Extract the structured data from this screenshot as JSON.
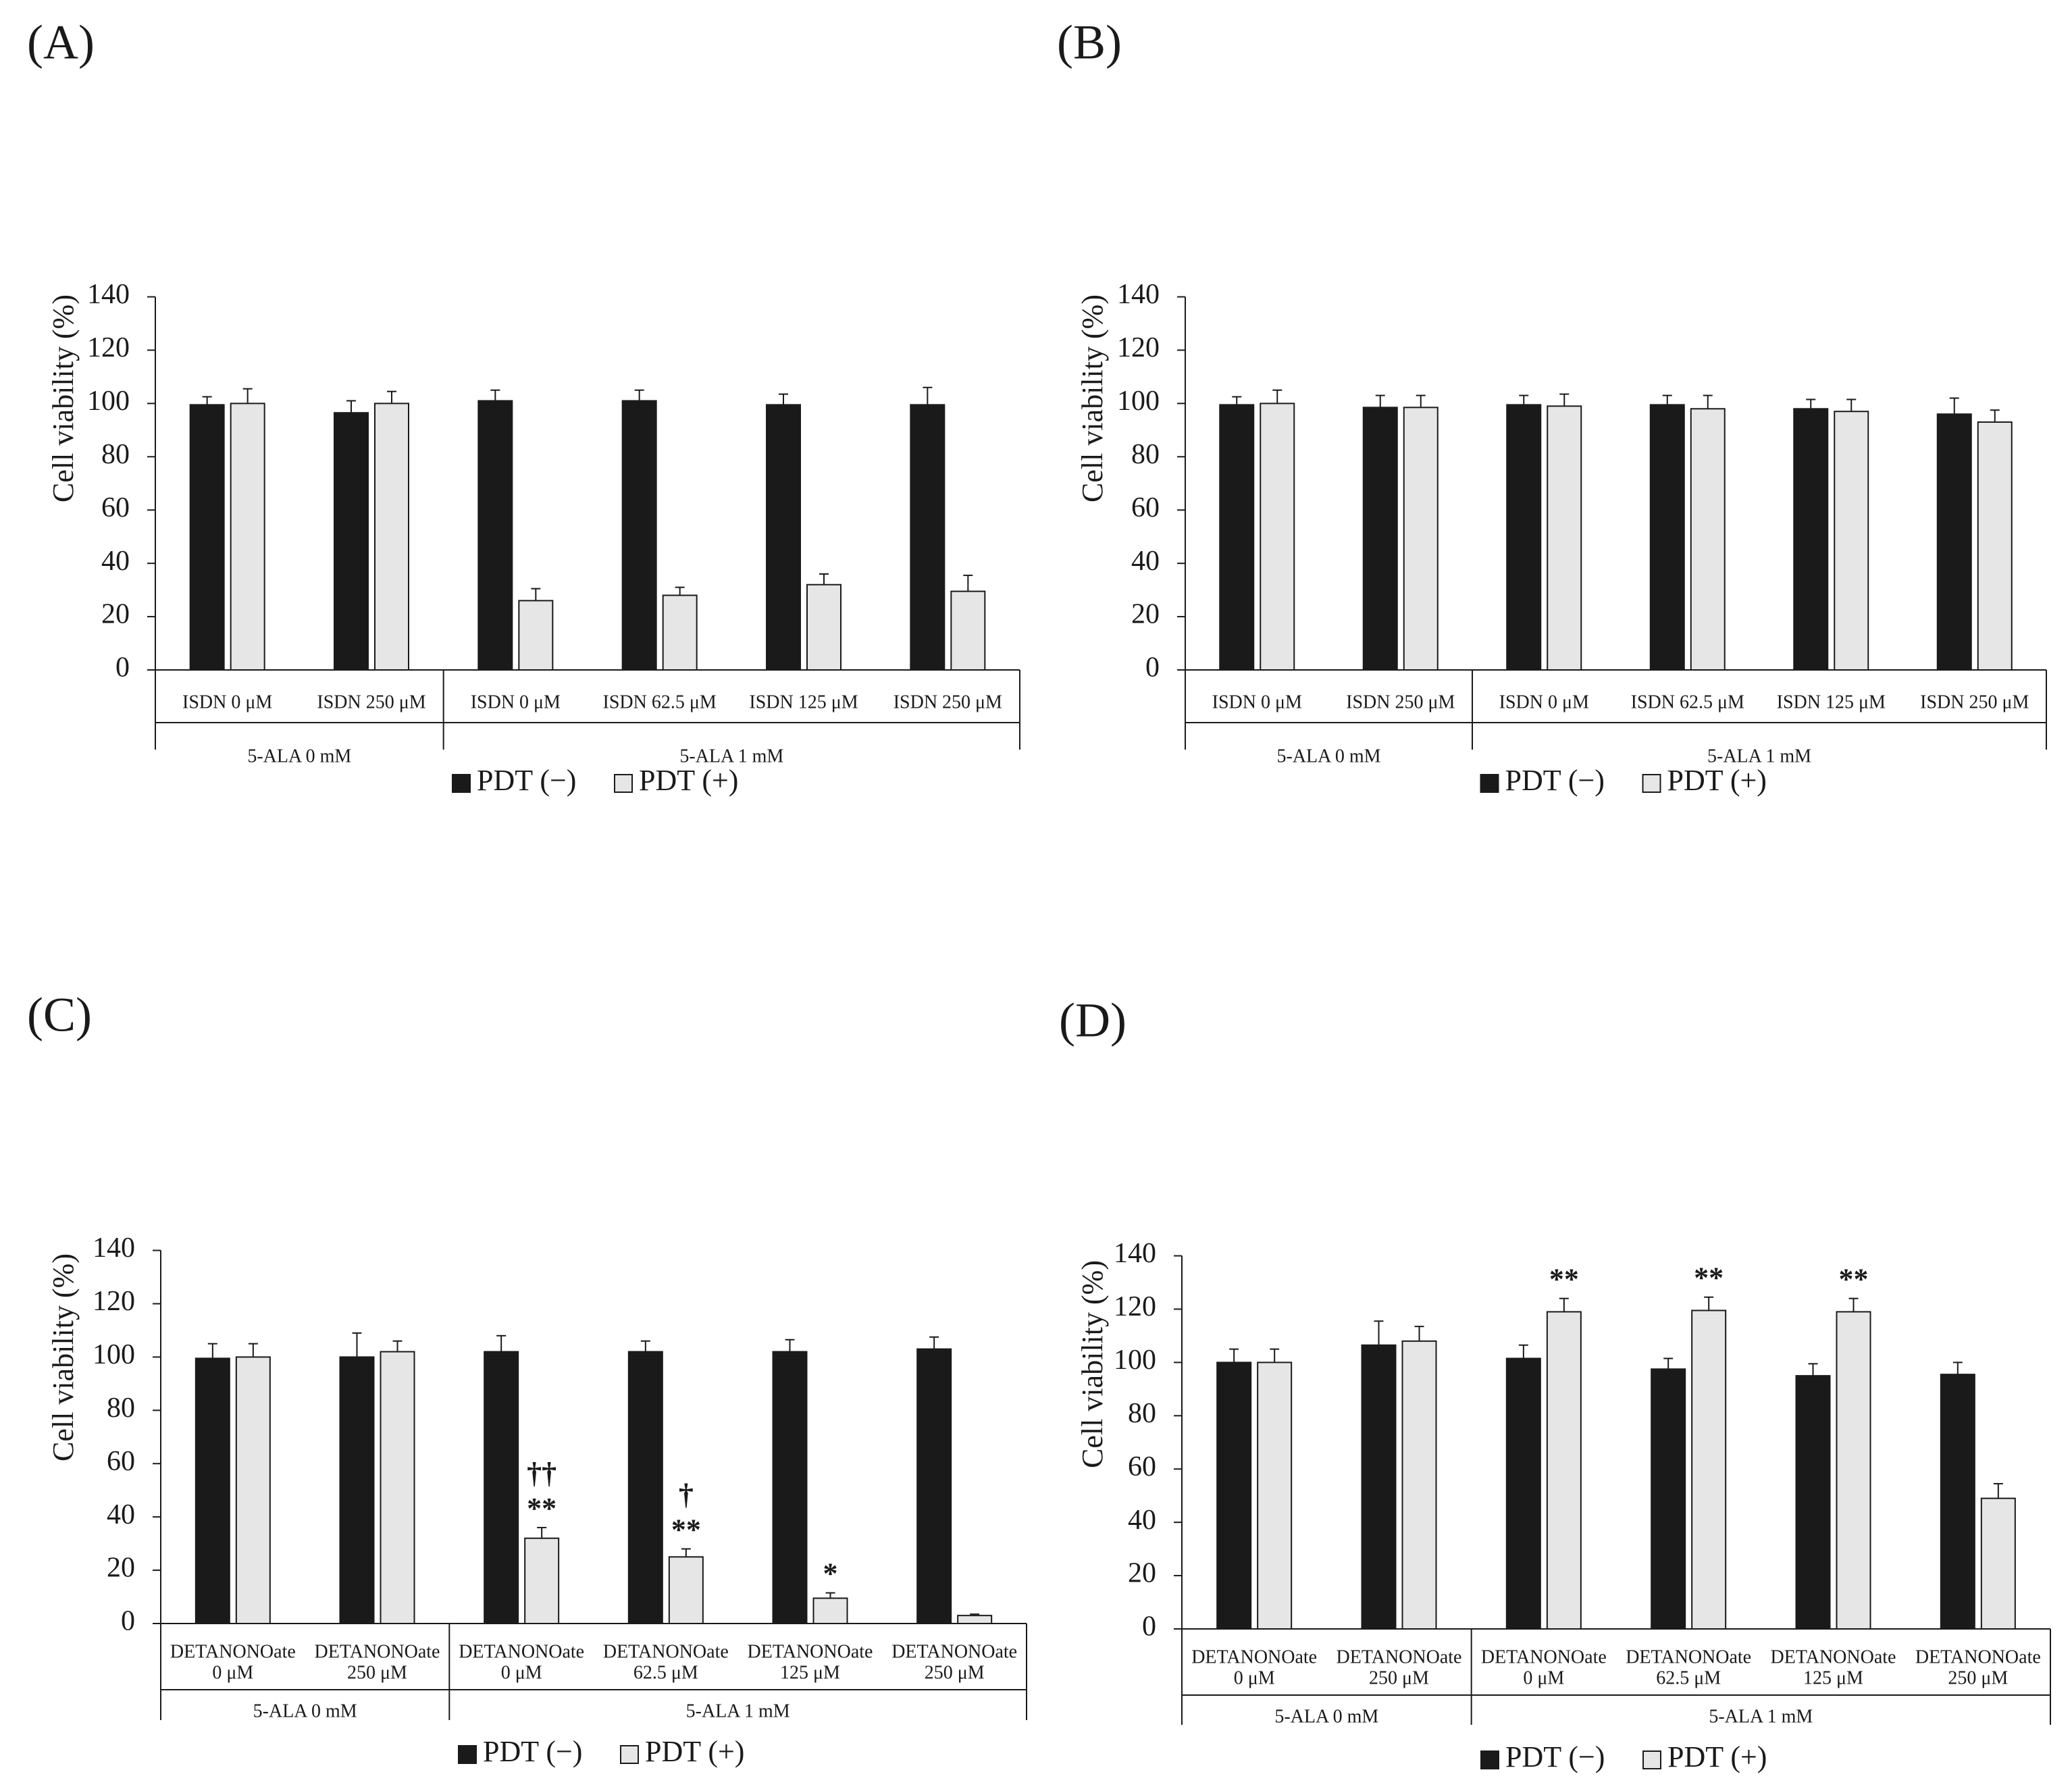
{
  "figure": {
    "ylabel": "Cell viability (%)",
    "yticks": [
      0,
      20,
      40,
      60,
      80,
      100,
      120,
      140
    ],
    "legend": [
      {
        "label": "PDT (−)",
        "color": "#1a1a1a"
      },
      {
        "label": "PDT (+)",
        "color": "#e6e6e6"
      }
    ]
  },
  "chart_data": [
    {
      "panel": "(A)",
      "type": "bar",
      "ylabel": "Cell viability (%)",
      "ylim": [
        0,
        140
      ],
      "group_labels": [
        "5-ALA 0 mM",
        "5-ALA 1 mM"
      ],
      "group_sizes": [
        2,
        4
      ],
      "categories": [
        [
          "ISDN 0 μM"
        ],
        [
          "ISDN 250 μM"
        ],
        [
          "ISDN 0 μM"
        ],
        [
          "ISDN 62.5 μM"
        ],
        [
          "ISDN 125 μM"
        ],
        [
          "ISDN 250 μM"
        ]
      ],
      "series": [
        {
          "name": "PDT (−)",
          "values": [
            99.5,
            96.5,
            101,
            101,
            99.5,
            99.5
          ],
          "errors": [
            3,
            4.5,
            4,
            4,
            4,
            6.5
          ]
        },
        {
          "name": "PDT (+)",
          "values": [
            100,
            100,
            26,
            28,
            32,
            29.5
          ],
          "errors": [
            5.5,
            4.5,
            4.5,
            3,
            4,
            6
          ]
        }
      ],
      "annotations": []
    },
    {
      "panel": "(B)",
      "type": "bar",
      "ylabel": "Cell viability (%)",
      "ylim": [
        0,
        140
      ],
      "group_labels": [
        "5-ALA 0 mM",
        "5-ALA 1 mM"
      ],
      "group_sizes": [
        2,
        4
      ],
      "categories": [
        [
          "ISDN 0 μM"
        ],
        [
          "ISDN 250 μM"
        ],
        [
          "ISDN 0 μM"
        ],
        [
          "ISDN 62.5 μM"
        ],
        [
          "ISDN 125 μM"
        ],
        [
          "ISDN 250 μM"
        ]
      ],
      "series": [
        {
          "name": "PDT (−)",
          "values": [
            99.5,
            98.5,
            99.5,
            99.5,
            98,
            96
          ],
          "errors": [
            3,
            4.5,
            3.5,
            3.5,
            3.5,
            6
          ]
        },
        {
          "name": "PDT (+)",
          "values": [
            100,
            98.5,
            99,
            98,
            97,
            93
          ],
          "errors": [
            5,
            4.5,
            4.5,
            5,
            4.5,
            4.5
          ]
        }
      ],
      "annotations": []
    },
    {
      "panel": "(C)",
      "type": "bar",
      "ylabel": "Cell viability (%)",
      "ylim": [
        0,
        140
      ],
      "group_labels": [
        "5-ALA 0 mM",
        "5-ALA 1 mM"
      ],
      "group_sizes": [
        2,
        4
      ],
      "categories": [
        [
          "DETANONOate",
          "0 μM"
        ],
        [
          "DETANONOate",
          "250 μM"
        ],
        [
          "DETANONOate",
          "0 μM"
        ],
        [
          "DETANONOate",
          "62.5 μM"
        ],
        [
          "DETANONOate",
          "125 μM"
        ],
        [
          "DETANONOate",
          "250 μM"
        ]
      ],
      "series": [
        {
          "name": "PDT (−)",
          "values": [
            99.5,
            100,
            102,
            102,
            102,
            103
          ],
          "errors": [
            5.5,
            9,
            6,
            4,
            4.5,
            4.5
          ]
        },
        {
          "name": "PDT (+)",
          "values": [
            100,
            102,
            32,
            25,
            9.5,
            3
          ],
          "errors": [
            5,
            4,
            4,
            3,
            2,
            0.5
          ]
        }
      ],
      "annotations": [
        {
          "category": 2,
          "series": 1,
          "lines": [
            "††",
            "**"
          ]
        },
        {
          "category": 3,
          "series": 1,
          "lines": [
            "†",
            "**"
          ]
        },
        {
          "category": 4,
          "series": 1,
          "lines": [
            "*"
          ]
        }
      ]
    },
    {
      "panel": "(D)",
      "type": "bar",
      "ylabel": "Cell viability (%)",
      "ylim": [
        0,
        140
      ],
      "group_labels": [
        "5-ALA 0 mM",
        "5-ALA 1 mM"
      ],
      "group_sizes": [
        2,
        4
      ],
      "categories": [
        [
          "DETANONOate",
          "0 μM"
        ],
        [
          "DETANONOate",
          "250 μM"
        ],
        [
          "DETANONOate",
          "0 μM"
        ],
        [
          "DETANONOate",
          "62.5 μM"
        ],
        [
          "DETANONOate",
          "125 μM"
        ],
        [
          "DETANONOate",
          "250 μM"
        ]
      ],
      "series": [
        {
          "name": "PDT (−)",
          "values": [
            100,
            106.5,
            101.5,
            97.5,
            95,
            95.5
          ],
          "errors": [
            5,
            9,
            5,
            4,
            4.5,
            4.5
          ]
        },
        {
          "name": "PDT (+)",
          "values": [
            100,
            108,
            119,
            119.5,
            119,
            49
          ],
          "errors": [
            5,
            5.5,
            5,
            5,
            5,
            5.5
          ]
        }
      ],
      "annotations": [
        {
          "category": 2,
          "series": 1,
          "lines": [
            "**"
          ]
        },
        {
          "category": 3,
          "series": 1,
          "lines": [
            "**"
          ]
        },
        {
          "category": 4,
          "series": 1,
          "lines": [
            "**"
          ]
        }
      ]
    }
  ]
}
